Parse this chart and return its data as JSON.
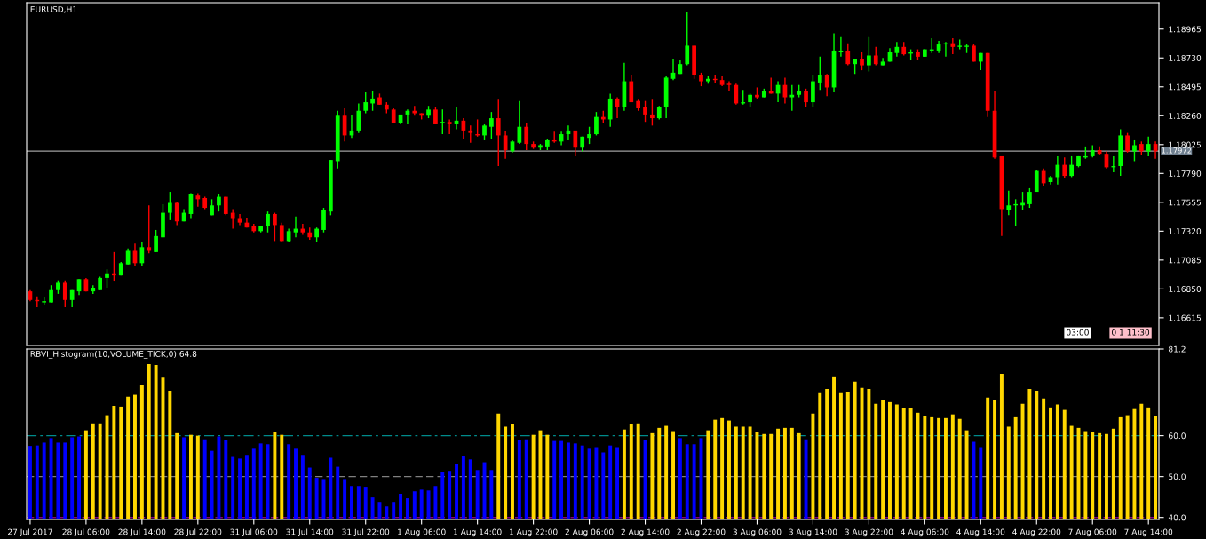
{
  "chart_data": [
    {
      "type": "candlestick",
      "title": "EURUSD,H1",
      "colors": [
        "#ff0000",
        "#ff0000",
        "#00ff00",
        "#00ff00",
        "#00ff00",
        "#ff0000",
        "#00ff00",
        "#00ff00",
        "#ff0000",
        "#00ff00",
        "#00ff00",
        "#00ff00",
        "#ff0000",
        "#00ff00",
        "#00ff00",
        "#ff0000",
        "#00ff00",
        "#ff0000",
        "#00ff00",
        "#00ff00",
        "#00ff00",
        "#ff0000",
        "#00ff00",
        "#00ff00",
        "#ff0000",
        "#ff0000",
        "#00ff00",
        "#00ff00",
        "#ff0000",
        "#ff0000",
        "#ff0000",
        "#ff0000",
        "#ff0000",
        "#00ff00",
        "#00ff00",
        "#ff0000",
        "#ff0000",
        "#00ff00",
        "#00ff00",
        "#ff0000",
        "#ff0000",
        "#00ff00",
        "#00ff00",
        "#00ff00",
        "#00ff00",
        "#ff0000",
        "#00ff00",
        "#00ff00",
        "#00ff00",
        "#00ff00",
        "#ff0000",
        "#ff0000",
        "#ff0000",
        "#00ff00",
        "#00ff00",
        "#ff0000",
        "#ff0000",
        "#00ff00",
        "#ff0000",
        "#00ff00",
        "#ff0000",
        "#00ff00",
        "#ff0000",
        "#ff0000",
        "#ff0000",
        "#00ff00",
        "#00ff00",
        "#ff0000",
        "#ff0000",
        "#00ff00",
        "#00ff00",
        "#ff0000",
        "#ff0000",
        "#00ff00",
        "#00ff00",
        "#ff0000",
        "#00ff00",
        "#00ff00",
        "#ff0000",
        "#00ff00",
        "#00ff00",
        "#00ff00",
        "#ff0000",
        "#00ff00",
        "#ff0000",
        "#00ff00",
        "#ff0000",
        "#ff0000",
        "#ff0000",
        "#ff0000",
        "#00ff00",
        "#00ff00",
        "#00ff00",
        "#00ff00",
        "#00ff00",
        "#ff0000",
        "#ff0000",
        "#00ff00",
        "#ff0000",
        "#ff0000",
        "#ff0000",
        "#ff0000",
        "#00ff00",
        "#00ff00",
        "#ff0000",
        "#00ff00",
        "#ff0000",
        "#00ff00",
        "#ff0000",
        "#00ff00",
        "#00ff00",
        "#ff0000",
        "#00ff00",
        "#00ff00",
        "#ff0000",
        "#00ff00",
        "#00ff00",
        "#ff0000",
        "#00ff00",
        "#ff0000",
        "#00ff00",
        "#ff0000",
        "#00ff00",
        "#00ff00",
        "#00ff00",
        "#ff0000",
        "#00ff00",
        "#ff0000",
        "#00ff00",
        "#00ff00",
        "#00ff00",
        "#00ff00",
        "#ff0000",
        "#00ff00",
        "#00ff00",
        "#ff0000",
        "#00ff00",
        "#ff0000",
        "#ff0000",
        "#ff0000",
        "#00ff00",
        "#00ff00",
        "#00ff00",
        "#00ff00",
        "#00ff00",
        "#ff0000",
        "#00ff00",
        "#00ff00",
        "#ff0000",
        "#00ff00",
        "#00ff00",
        "#00ff00",
        "#00ff00",
        "#ff0000",
        "#ff0000",
        "#00ff00",
        "#00ff00",
        "#ff0000",
        "#00ff00",
        "#ff0000",
        "#00ff00",
        "#ff0000"
      ],
      "ohlc": [
        [
          1.1683,
          1.1684,
          1.1675,
          1.1676
        ],
        [
          1.1676,
          1.1679,
          1.167,
          1.1675
        ],
        [
          1.1674,
          1.1678,
          1.1672,
          1.1675
        ],
        [
          1.1674,
          1.1688,
          1.1674,
          1.1684
        ],
        [
          1.1684,
          1.1692,
          1.1681,
          1.169
        ],
        [
          1.169,
          1.1692,
          1.167,
          1.1676
        ],
        [
          1.1676,
          1.1684,
          1.167,
          1.1684
        ],
        [
          1.1683,
          1.1693,
          1.168,
          1.1693
        ],
        [
          1.1693,
          1.1694,
          1.1683,
          1.1683
        ],
        [
          1.1683,
          1.1688,
          1.1681,
          1.1686
        ],
        [
          1.1684,
          1.1695,
          1.1684,
          1.1694
        ],
        [
          1.1694,
          1.1701,
          1.1686,
          1.1697
        ],
        [
          1.1697,
          1.1715,
          1.1691,
          1.1696
        ],
        [
          1.1696,
          1.1707,
          1.1696,
          1.1706
        ],
        [
          1.1705,
          1.1718,
          1.1705,
          1.1716
        ],
        [
          1.1716,
          1.1722,
          1.1704,
          1.1706
        ],
        [
          1.1706,
          1.1723,
          1.1704,
          1.1719
        ],
        [
          1.1719,
          1.1753,
          1.1714,
          1.1716
        ],
        [
          1.1715,
          1.1733,
          1.1715,
          1.1728
        ],
        [
          1.1727,
          1.1754,
          1.1727,
          1.1747
        ],
        [
          1.1747,
          1.1764,
          1.1741,
          1.1755
        ],
        [
          1.1755,
          1.1756,
          1.1737,
          1.174
        ],
        [
          1.174,
          1.175,
          1.174,
          1.1747
        ],
        [
          1.1746,
          1.1763,
          1.1742,
          1.1762
        ],
        [
          1.1761,
          1.1763,
          1.1752,
          1.1758
        ],
        [
          1.1759,
          1.176,
          1.175,
          1.1751
        ],
        [
          1.1745,
          1.1758,
          1.1745,
          1.1753
        ],
        [
          1.1753,
          1.1762,
          1.1748,
          1.176
        ],
        [
          1.176,
          1.176,
          1.1745,
          1.1746
        ],
        [
          1.1747,
          1.175,
          1.1734,
          1.1742
        ],
        [
          1.1742,
          1.1746,
          1.1737,
          1.1739
        ],
        [
          1.1739,
          1.1743,
          1.1735,
          1.1735
        ],
        [
          1.1736,
          1.1738,
          1.1731,
          1.1732
        ],
        [
          1.1732,
          1.1736,
          1.1731,
          1.1736
        ],
        [
          1.1736,
          1.1748,
          1.1731,
          1.1746
        ],
        [
          1.1746,
          1.1747,
          1.1724,
          1.1737
        ],
        [
          1.1737,
          1.1739,
          1.1723,
          1.1724
        ],
        [
          1.1724,
          1.1734,
          1.1723,
          1.1732
        ],
        [
          1.1731,
          1.1744,
          1.1727,
          1.1734
        ],
        [
          1.1734,
          1.1738,
          1.1729,
          1.1731
        ],
        [
          1.1731,
          1.1735,
          1.1725,
          1.1727
        ],
        [
          1.1727,
          1.1735,
          1.1723,
          1.1734
        ],
        [
          1.1733,
          1.1751,
          1.1731,
          1.1749
        ],
        [
          1.1748,
          1.179,
          1.1745,
          1.179
        ],
        [
          1.1789,
          1.183,
          1.1783,
          1.1826
        ],
        [
          1.1826,
          1.1832,
          1.1805,
          1.181
        ],
        [
          1.181,
          1.1827,
          1.1808,
          1.1814
        ],
        [
          1.1814,
          1.1836,
          1.1812,
          1.183
        ],
        [
          1.183,
          1.1845,
          1.1828,
          1.1837
        ],
        [
          1.1836,
          1.1846,
          1.183,
          1.184
        ],
        [
          1.1841,
          1.1844,
          1.1835,
          1.1835
        ],
        [
          1.1835,
          1.1837,
          1.1828,
          1.1831
        ],
        [
          1.1831,
          1.1832,
          1.182,
          1.182
        ],
        [
          1.182,
          1.1827,
          1.1819,
          1.1827
        ],
        [
          1.1827,
          1.1831,
          1.1819,
          1.183
        ],
        [
          1.183,
          1.1834,
          1.1826,
          1.1828
        ],
        [
          1.1828,
          1.1828,
          1.1823,
          1.1826
        ],
        [
          1.1826,
          1.1834,
          1.1824,
          1.1831
        ],
        [
          1.1831,
          1.1833,
          1.1819,
          1.1819
        ],
        [
          1.182,
          1.1831,
          1.1811,
          1.1821
        ],
        [
          1.1821,
          1.1823,
          1.1811,
          1.1819
        ],
        [
          1.1819,
          1.1833,
          1.1815,
          1.1822
        ],
        [
          1.1822,
          1.1824,
          1.1807,
          1.1814
        ],
        [
          1.1814,
          1.1818,
          1.1804,
          1.1812
        ],
        [
          1.1811,
          1.1823,
          1.1809,
          1.181
        ],
        [
          1.181,
          1.1819,
          1.1806,
          1.1818
        ],
        [
          1.1817,
          1.1829,
          1.1807,
          1.1824
        ],
        [
          1.1824,
          1.1839,
          1.1785,
          1.181
        ],
        [
          1.181,
          1.1814,
          1.1791,
          1.1798
        ],
        [
          1.1797,
          1.1806,
          1.1796,
          1.1805
        ],
        [
          1.1804,
          1.1838,
          1.1803,
          1.1817
        ],
        [
          1.1817,
          1.182,
          1.1798,
          1.1803
        ],
        [
          1.1803,
          1.1805,
          1.1799,
          1.18
        ],
        [
          1.18,
          1.1803,
          1.1798,
          1.1802
        ],
        [
          1.1801,
          1.1807,
          1.1798,
          1.1806
        ],
        [
          1.1806,
          1.1813,
          1.1804,
          1.1805
        ],
        [
          1.1805,
          1.1813,
          1.1802,
          1.1811
        ],
        [
          1.1811,
          1.1818,
          1.1806,
          1.1814
        ],
        [
          1.1814,
          1.1814,
          1.1793,
          1.18
        ],
        [
          1.18,
          1.1809,
          1.1797,
          1.1809
        ],
        [
          1.1808,
          1.1817,
          1.1803,
          1.1811
        ],
        [
          1.1811,
          1.1829,
          1.181,
          1.1825
        ],
        [
          1.1825,
          1.183,
          1.182,
          1.1823
        ],
        [
          1.1823,
          1.1844,
          1.1817,
          1.184
        ],
        [
          1.184,
          1.1841,
          1.1824,
          1.1833
        ],
        [
          1.1833,
          1.1869,
          1.183,
          1.1854
        ],
        [
          1.1854,
          1.1859,
          1.1837,
          1.1837
        ],
        [
          1.1838,
          1.1839,
          1.183,
          1.1832
        ],
        [
          1.1833,
          1.1838,
          1.1821,
          1.1827
        ],
        [
          1.1827,
          1.1839,
          1.1818,
          1.1824
        ],
        [
          1.1824,
          1.1834,
          1.1823,
          1.1833
        ],
        [
          1.1833,
          1.1858,
          1.1824,
          1.1857
        ],
        [
          1.1856,
          1.1872,
          1.1855,
          1.1861
        ],
        [
          1.186,
          1.1871,
          1.186,
          1.1868
        ],
        [
          1.1868,
          1.191,
          1.1867,
          1.1883
        ],
        [
          1.1883,
          1.1883,
          1.1856,
          1.1859
        ],
        [
          1.1859,
          1.1861,
          1.185,
          1.1854
        ],
        [
          1.1854,
          1.1858,
          1.1852,
          1.1856
        ],
        [
          1.1856,
          1.1859,
          1.1853,
          1.1855
        ],
        [
          1.1855,
          1.1858,
          1.185,
          1.1851
        ],
        [
          1.1852,
          1.1854,
          1.1846,
          1.1851
        ],
        [
          1.1851,
          1.1852,
          1.1835,
          1.1836
        ],
        [
          1.1836,
          1.1847,
          1.1835,
          1.1837
        ],
        [
          1.1837,
          1.1844,
          1.1833,
          1.1843
        ],
        [
          1.1843,
          1.1849,
          1.184,
          1.1841
        ],
        [
          1.1841,
          1.1848,
          1.1841,
          1.1846
        ],
        [
          1.1846,
          1.1857,
          1.1844,
          1.1844
        ],
        [
          1.1844,
          1.1854,
          1.1837,
          1.1851
        ],
        [
          1.1851,
          1.1857,
          1.1836,
          1.1841
        ],
        [
          1.1841,
          1.1851,
          1.183,
          1.1843
        ],
        [
          1.1843,
          1.1851,
          1.1841,
          1.1846
        ],
        [
          1.1846,
          1.1848,
          1.1833,
          1.1837
        ],
        [
          1.1837,
          1.1859,
          1.1833,
          1.1854
        ],
        [
          1.1853,
          1.1874,
          1.1847,
          1.1859
        ],
        [
          1.1859,
          1.186,
          1.1842,
          1.1849
        ],
        [
          1.1849,
          1.1893,
          1.1845,
          1.1879
        ],
        [
          1.1878,
          1.189,
          1.1874,
          1.1879
        ],
        [
          1.1879,
          1.1885,
          1.1867,
          1.1868
        ],
        [
          1.1868,
          1.1872,
          1.186,
          1.1872
        ],
        [
          1.1872,
          1.1878,
          1.1863,
          1.1867
        ],
        [
          1.1867,
          1.189,
          1.1862,
          1.1875
        ],
        [
          1.1875,
          1.1882,
          1.1867,
          1.1868
        ],
        [
          1.1867,
          1.1873,
          1.1867,
          1.187
        ],
        [
          1.187,
          1.1881,
          1.187,
          1.1878
        ],
        [
          1.1877,
          1.1886,
          1.1874,
          1.1882
        ],
        [
          1.1882,
          1.1886,
          1.1875,
          1.1876
        ],
        [
          1.1877,
          1.188,
          1.1871,
          1.1877
        ],
        [
          1.1878,
          1.188,
          1.1871,
          1.1874
        ],
        [
          1.1874,
          1.188,
          1.1874,
          1.188
        ],
        [
          1.1879,
          1.1889,
          1.1877,
          1.188
        ],
        [
          1.1879,
          1.1887,
          1.1877,
          1.1884
        ],
        [
          1.1884,
          1.1886,
          1.1874,
          1.1885
        ],
        [
          1.1885,
          1.1889,
          1.1876,
          1.1882
        ],
        [
          1.1882,
          1.1888,
          1.188,
          1.1883
        ],
        [
          1.1882,
          1.1884,
          1.1877,
          1.1883
        ],
        [
          1.1883,
          1.1884,
          1.187,
          1.187
        ],
        [
          1.187,
          1.1877,
          1.1863,
          1.1877
        ],
        [
          1.1877,
          1.1877,
          1.1825,
          1.183
        ],
        [
          1.183,
          1.1846,
          1.1791,
          1.1792
        ],
        [
          1.1793,
          1.1793,
          1.1728,
          1.175
        ],
        [
          1.1749,
          1.1765,
          1.1745,
          1.1753
        ],
        [
          1.1753,
          1.1758,
          1.1736,
          1.1754
        ],
        [
          1.1753,
          1.1764,
          1.1749,
          1.1755
        ],
        [
          1.1754,
          1.1767,
          1.1751,
          1.1764
        ],
        [
          1.1764,
          1.1782,
          1.1764,
          1.1781
        ],
        [
          1.1781,
          1.1783,
          1.1769,
          1.1771
        ],
        [
          1.1772,
          1.1777,
          1.177,
          1.1776
        ],
        [
          1.1776,
          1.1793,
          1.177,
          1.1786
        ],
        [
          1.1786,
          1.1792,
          1.1775,
          1.1777
        ],
        [
          1.1777,
          1.1793,
          1.1776,
          1.1786
        ],
        [
          1.1785,
          1.1793,
          1.1784,
          1.1793
        ],
        [
          1.1792,
          1.1801,
          1.1791,
          1.1793
        ],
        [
          1.1793,
          1.1802,
          1.1792,
          1.1798
        ],
        [
          1.1798,
          1.1801,
          1.1794,
          1.1795
        ],
        [
          1.1795,
          1.1797,
          1.1783,
          1.1784
        ],
        [
          1.1784,
          1.1793,
          1.178,
          1.1785
        ],
        [
          1.1785,
          1.1815,
          1.1777,
          1.181
        ],
        [
          1.181,
          1.1812,
          1.1796,
          1.1797
        ],
        [
          1.1797,
          1.1806,
          1.1789,
          1.1802
        ],
        [
          1.1803,
          1.1805,
          1.1794,
          1.1797
        ],
        [
          1.1797,
          1.1809,
          1.1793,
          1.1803
        ],
        [
          1.1803,
          1.1805,
          1.1791,
          1.1797
        ]
      ],
      "ylim": [
        1.1639,
        1.1918
      ],
      "yticks": [
        {
          "value": 1.16615,
          "label": "1.16615"
        },
        {
          "value": 1.1685,
          "label": "1.16850"
        },
        {
          "value": 1.17085,
          "label": "1.17085"
        },
        {
          "value": 1.1732,
          "label": "1.17320"
        },
        {
          "value": 1.17555,
          "label": "1.17555"
        },
        {
          "value": 1.1779,
          "label": "1.17790"
        },
        {
          "value": 1.18025,
          "label": "1.18025"
        },
        {
          "value": 1.1826,
          "label": "1.18260"
        },
        {
          "value": 1.18495,
          "label": "1.18495"
        },
        {
          "value": 1.1873,
          "label": "1.18730"
        },
        {
          "value": 1.18965,
          "label": "1.18965"
        }
      ],
      "ref_lines": [
        {
          "axis": "y",
          "value": 1.17972,
          "label": "1.17972",
          "color": "#a0a0a0",
          "line_style": "solid"
        }
      ],
      "annotations": [
        "03:00",
        "0 1 11:30"
      ]
    },
    {
      "type": "bar",
      "title": "RBVI_Histogram(10,VOLUME_TICK,0) 64.8",
      "categories": [
        "27 Jul 2017",
        null,
        null,
        null,
        null,
        null,
        null,
        null,
        "28 Jul 06:00",
        null,
        null,
        null,
        null,
        null,
        null,
        null,
        "28 Jul 14:00",
        null,
        null,
        null,
        null,
        null,
        null,
        null,
        "28 Jul 22:00",
        null,
        null,
        null,
        null,
        null,
        null,
        null,
        "31 Jul 06:00",
        null,
        null,
        null,
        null,
        null,
        null,
        null,
        "31 Jul 14:00",
        null,
        null,
        null,
        null,
        null,
        null,
        null,
        "31 Jul 22:00",
        null,
        null,
        null,
        null,
        null,
        null,
        null,
        "1 Aug 06:00",
        null,
        null,
        null,
        null,
        null,
        null,
        null,
        "1 Aug 14:00",
        null,
        null,
        null,
        null,
        null,
        null,
        null,
        "1 Aug 22:00",
        null,
        null,
        null,
        null,
        null,
        null,
        null,
        "2 Aug 06:00",
        null,
        null,
        null,
        null,
        null,
        null,
        null,
        "2 Aug 14:00",
        null,
        null,
        null,
        null,
        null,
        null,
        null,
        "2 Aug 22:00",
        null,
        null,
        null,
        null,
        null,
        null,
        null,
        "3 Aug 06:00",
        null,
        null,
        null,
        null,
        null,
        null,
        null,
        "3 Aug 14:00",
        null,
        null,
        null,
        null,
        null,
        null,
        null,
        "3 Aug 22:00",
        null,
        null,
        null,
        null,
        null,
        null,
        null,
        "4 Aug 06:00",
        null,
        null,
        null,
        null,
        null,
        null,
        null,
        "4 Aug 14:00",
        null,
        null,
        null,
        null,
        null,
        null,
        null,
        "4 Aug 22:00",
        null,
        null,
        null,
        null,
        null,
        null,
        null,
        "7 Aug 06:00",
        null,
        null,
        null,
        null,
        null,
        null,
        null,
        "7 Aug 14:00",
        null
      ],
      "values": [
        57.5,
        57.6,
        58.3,
        59.4,
        58.3,
        58.3,
        59.6,
        59.8,
        61.3,
        63.0,
        63.0,
        65.0,
        67.3,
        67.1,
        69.5,
        70.0,
        72.3,
        77.5,
        77.3,
        74.2,
        71.0,
        60.6,
        59.6,
        60.2,
        60.0,
        59.1,
        56.3,
        59.8,
        58.9,
        54.8,
        54.4,
        55.3,
        56.8,
        58.1,
        57.9,
        60.9,
        60.2,
        57.9,
        56.8,
        55.3,
        52.2,
        49.7,
        49.4,
        54.6,
        52.4,
        49.4,
        47.7,
        47.7,
        47.3,
        44.9,
        43.8,
        42.7,
        43.8,
        45.8,
        44.7,
        46.4,
        46.8,
        46.6,
        47.7,
        51.2,
        51.4,
        53.1,
        55.0,
        54.2,
        51.6,
        53.5,
        51.6,
        65.4,
        62.2,
        62.8,
        58.9,
        59.1,
        60.2,
        61.3,
        60.2,
        58.7,
        58.7,
        58.3,
        58.1,
        57.6,
        56.8,
        57.2,
        55.9,
        57.6,
        57.2,
        61.5,
        62.8,
        63.0,
        58.9,
        60.6,
        61.9,
        62.4,
        61.1,
        59.4,
        57.9,
        57.9,
        59.4,
        61.3,
        63.9,
        64.3,
        63.7,
        62.2,
        62.2,
        62.2,
        60.9,
        60.4,
        60.4,
        61.7,
        61.9,
        61.9,
        60.6,
        59.1,
        65.4,
        70.4,
        71.4,
        74.5,
        70.4,
        70.6,
        73.2,
        71.7,
        71.4,
        67.8,
        68.8,
        68.2,
        67.6,
        66.7,
        66.7,
        65.6,
        64.7,
        64.5,
        64.3,
        64.3,
        65.2,
        64.1,
        61.3,
        58.5,
        57.2,
        69.3,
        68.6,
        75.1,
        62.2,
        64.5,
        67.8,
        71.4,
        71.0,
        69.1,
        66.9,
        67.6,
        66.3,
        62.4,
        61.9,
        61.1,
        60.9,
        60.6,
        60.4,
        61.7,
        64.5,
        65.0,
        66.5,
        67.8,
        66.9,
        64.8
      ],
      "colors": [
        "#0000ff",
        "#0000ff",
        "#0000ff",
        "#0000ff",
        "#0000ff",
        "#0000ff",
        "#0000ff",
        "#0000ff",
        "#ffd700",
        "#ffd700",
        "#ffd700",
        "#ffd700",
        "#ffd700",
        "#ffd700",
        "#ffd700",
        "#ffd700",
        "#ffd700",
        "#ffd700",
        "#ffd700",
        "#ffd700",
        "#ffd700",
        "#ffd700",
        "#0000ff",
        "#ffd700",
        "#ffd700",
        "#0000ff",
        "#0000ff",
        "#0000ff",
        "#0000ff",
        "#0000ff",
        "#0000ff",
        "#0000ff",
        "#0000ff",
        "#0000ff",
        "#0000ff",
        "#ffd700",
        "#ffd700",
        "#0000ff",
        "#0000ff",
        "#0000ff",
        "#0000ff",
        "#0000ff",
        "#0000ff",
        "#0000ff",
        "#0000ff",
        "#0000ff",
        "#0000ff",
        "#0000ff",
        "#0000ff",
        "#0000ff",
        "#0000ff",
        "#0000ff",
        "#0000ff",
        "#0000ff",
        "#0000ff",
        "#0000ff",
        "#0000ff",
        "#0000ff",
        "#0000ff",
        "#0000ff",
        "#0000ff",
        "#0000ff",
        "#0000ff",
        "#0000ff",
        "#0000ff",
        "#0000ff",
        "#0000ff",
        "#ffd700",
        "#ffd700",
        "#ffd700",
        "#0000ff",
        "#0000ff",
        "#ffd700",
        "#ffd700",
        "#ffd700",
        "#0000ff",
        "#0000ff",
        "#0000ff",
        "#0000ff",
        "#0000ff",
        "#0000ff",
        "#0000ff",
        "#0000ff",
        "#0000ff",
        "#0000ff",
        "#ffd700",
        "#ffd700",
        "#ffd700",
        "#0000ff",
        "#ffd700",
        "#ffd700",
        "#ffd700",
        "#ffd700",
        "#0000ff",
        "#0000ff",
        "#0000ff",
        "#0000ff",
        "#ffd700",
        "#ffd700",
        "#ffd700",
        "#ffd700",
        "#ffd700",
        "#ffd700",
        "#ffd700",
        "#ffd700",
        "#ffd700",
        "#ffd700",
        "#ffd700",
        "#ffd700",
        "#ffd700",
        "#ffd700",
        "#0000ff",
        "#ffd700",
        "#ffd700",
        "#ffd700",
        "#ffd700",
        "#ffd700",
        "#ffd700",
        "#ffd700",
        "#ffd700",
        "#ffd700",
        "#ffd700",
        "#ffd700",
        "#ffd700",
        "#ffd700",
        "#ffd700",
        "#ffd700",
        "#ffd700",
        "#ffd700",
        "#ffd700",
        "#ffd700",
        "#ffd700",
        "#ffd700",
        "#ffd700",
        "#ffd700",
        "#0000ff",
        "#0000ff",
        "#ffd700",
        "#ffd700",
        "#ffd700",
        "#ffd700",
        "#ffd700",
        "#ffd700",
        "#ffd700",
        "#ffd700",
        "#ffd700",
        "#ffd700",
        "#ffd700",
        "#ffd700",
        "#ffd700",
        "#ffd700",
        "#ffd700",
        "#ffd700",
        "#ffd700",
        "#ffd700",
        "#ffd700",
        "#ffd700",
        "#ffd700",
        "#ffd700",
        "#ffd700",
        "#ffd700",
        "#ffd700"
      ],
      "ylim": [
        39.5,
        81.2
      ],
      "yticks": [
        {
          "value": 40,
          "label": "40.0"
        },
        {
          "value": 50,
          "label": "50.0"
        },
        {
          "value": 60,
          "label": "60.0"
        },
        81.2
      ],
      "ref_lines": [
        {
          "axis": "y",
          "value": 60,
          "color": "#008b8b",
          "line_style": "dashdot"
        },
        {
          "axis": "y",
          "value": 50,
          "color": "#808080",
          "line_style": "dashed"
        },
        {
          "axis": "y",
          "value": 40,
          "color": "#800080",
          "line_style": "dashed"
        }
      ]
    }
  ]
}
